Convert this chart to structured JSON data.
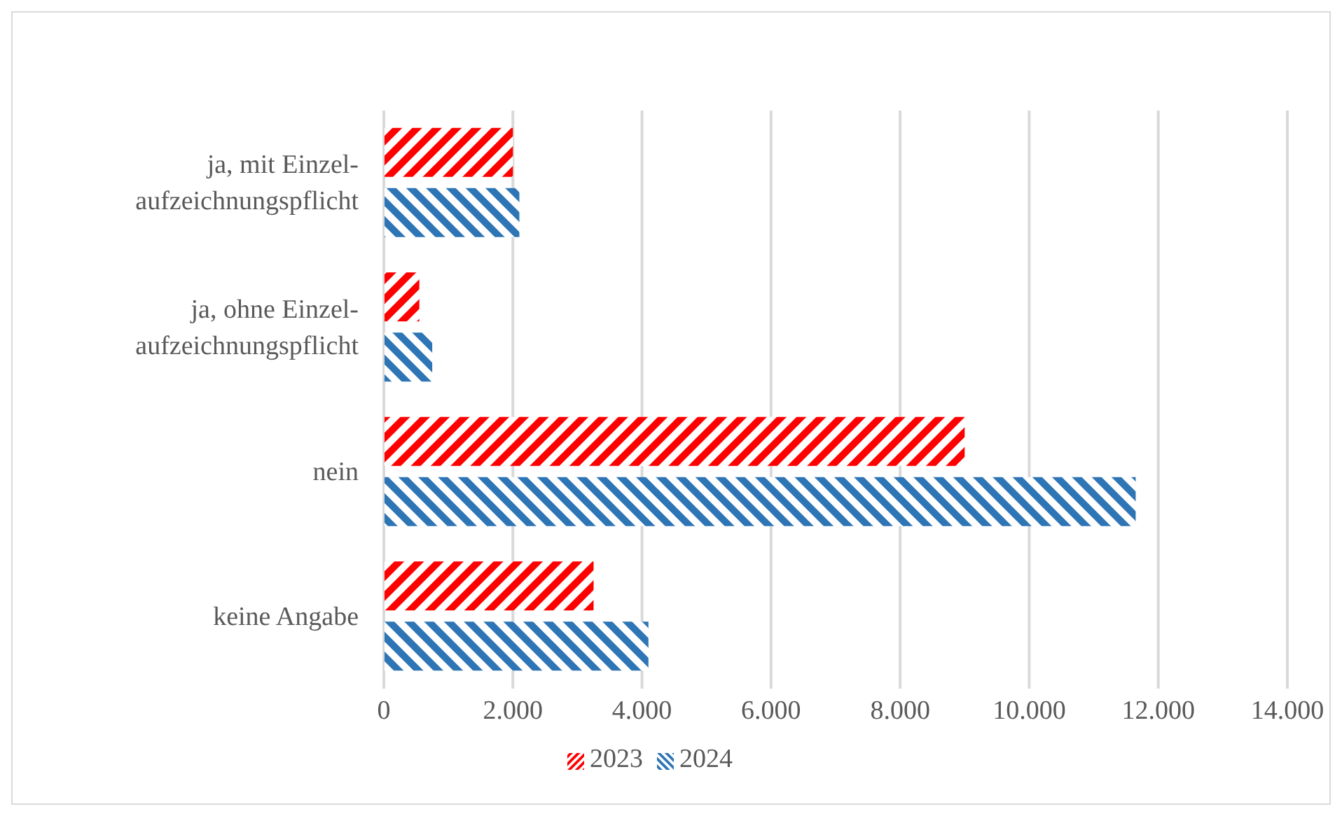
{
  "chart_data": {
    "type": "bar",
    "orientation": "horizontal",
    "categories": [
      "ja, mit Einzel-aufzeichnungspflicht",
      "ja, ohne Einzel-aufzeichnungspflicht",
      "nein",
      "keine Angabe"
    ],
    "series": [
      {
        "name": "2023",
        "color": "#ff0000",
        "values": [
          2000,
          550,
          9000,
          3250
        ]
      },
      {
        "name": "2024",
        "color": "#2e75b6",
        "values": [
          2100,
          750,
          11650,
          4100
        ]
      }
    ],
    "xlim": [
      0,
      14000
    ],
    "xticks": [
      0,
      {
        "value": 2000,
        "label": "2.000"
      },
      {
        "value": 4000,
        "label": "4.000"
      },
      {
        "value": 6000,
        "label": "6.000"
      },
      {
        "value": 8000,
        "label": "8.000"
      },
      {
        "value": 10000,
        "label": "10.000"
      },
      {
        "value": 12000,
        "label": "12.000"
      },
      {
        "value": 14000,
        "label": "14.000"
      }
    ],
    "grid": "x",
    "legend": "bottom"
  }
}
